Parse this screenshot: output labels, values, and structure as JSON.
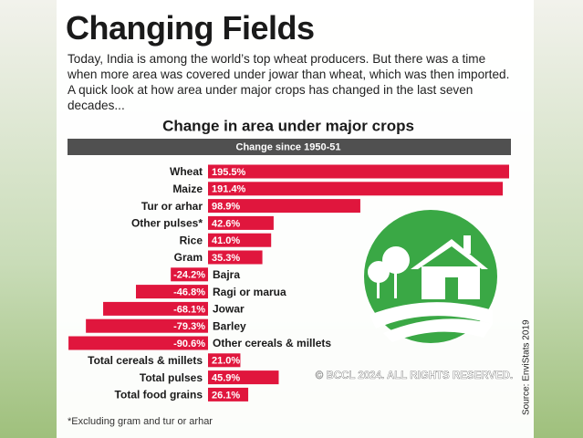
{
  "header": {
    "title": "Changing Fields",
    "text": "Today, India is among the world’s top wheat producers. But there was a time when more area was covered under jowar than wheat, which was then imported. A quick look at how area under major crops has changed in the last seven decades..."
  },
  "chart_data": {
    "type": "bar",
    "orientation": "horizontal",
    "title": "Change in area under major crops",
    "subtitle": "Change since 1950-51",
    "categories": [
      "Wheat",
      "Maize",
      "Tur or arhar",
      "Other pulses*",
      "Rice",
      "Gram",
      "Bajra",
      "Ragi or marua",
      "Jowar",
      "Barley",
      "Other cereals & millets",
      "Total cereals & millets",
      "Total pulses",
      "Total food grains"
    ],
    "values": [
      195.5,
      191.4,
      98.9,
      42.6,
      41.0,
      35.3,
      -24.2,
      -46.8,
      -68.1,
      -79.3,
      -90.6,
      21.0,
      45.9,
      26.1
    ],
    "value_labels": [
      "195.5%",
      "191.4%",
      "98.9%",
      "42.6%",
      "41.0%",
      "35.3%",
      "-24.2%",
      "-46.8%",
      "-68.1%",
      "-79.3%",
      "-90.6%",
      "21.0%",
      "45.9%",
      "26.1%"
    ],
    "color": "#e0163d",
    "note": "*Excluding gram and tur or arhar",
    "source": "Source: EnviStats 2019"
  },
  "watermark": "© BCCL 2024. ALL RIGHTS RESERVED."
}
